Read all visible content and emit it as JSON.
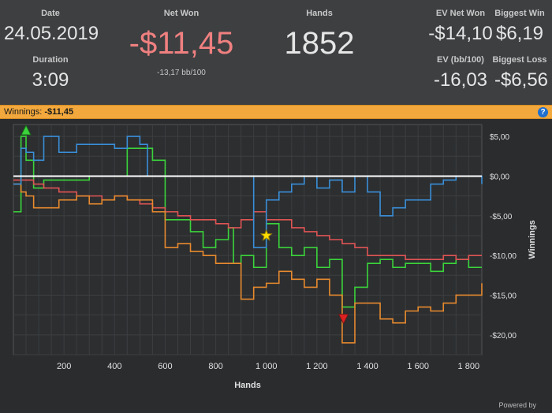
{
  "stats": {
    "date_label": "Date",
    "date_value": "24.05.2019",
    "duration_label": "Duration",
    "duration_value": "3:09",
    "net_won_label": "Net Won",
    "net_won_value": "-$11,45",
    "bb100_value": "-13,17 bb/100",
    "hands_label": "Hands",
    "hands_value": "1852",
    "ev_net_won_label": "EV Net Won",
    "ev_net_won_value": "-$14,10",
    "biggest_win_label": "Biggest Win",
    "biggest_win_value": "$6,19",
    "ev_bb100_label": "EV (bb/100)",
    "ev_bb100_value": "-16,03",
    "biggest_loss_label": "Biggest Loss",
    "biggest_loss_value": "-$6,56"
  },
  "winnings_bar": {
    "label": "Winnings:",
    "value": "-$11,45",
    "help_icon": "?"
  },
  "footer": {
    "text": "Powered by"
  },
  "colors": {
    "negative": "#f08080",
    "bar": "#f2a83c",
    "green": "#3bd43b",
    "red": "#e05454",
    "orange": "#e88a2e",
    "blue": "#3a8fd8",
    "zero_line": "#ffffff"
  },
  "chart_data": {
    "type": "line",
    "xlabel": "Hands",
    "ylabel": "Winnings",
    "xlim": [
      0,
      1852
    ],
    "ylim": [
      -22.5,
      6.5
    ],
    "x_ticks": [
      200,
      400,
      600,
      800,
      1000,
      1200,
      1400,
      1600,
      1800
    ],
    "x_tick_labels": [
      "200",
      "400",
      "600",
      "800",
      "1 000",
      "1 200",
      "1 400",
      "1 600",
      "1 800"
    ],
    "y_ticks": [
      5,
      0,
      -5,
      -10,
      -15,
      -20
    ],
    "y_tick_labels": [
      "$5,00",
      "$0,00",
      "-$5,00",
      "-$10,00",
      "-$15,00",
      "-$20,00"
    ],
    "grid": true,
    "series": [
      {
        "color": "#3bd43b",
        "x": [
          0,
          30,
          50,
          80,
          120,
          180,
          250,
          300,
          350,
          400,
          450,
          500,
          550,
          600,
          650,
          700,
          750,
          800,
          850,
          870,
          900,
          950,
          1000,
          1050,
          1100,
          1150,
          1200,
          1250,
          1300,
          1350,
          1400,
          1450,
          1500,
          1550,
          1600,
          1650,
          1700,
          1750,
          1800,
          1852
        ],
        "y": [
          -4.5,
          5,
          2,
          -1.5,
          -0.5,
          -0.5,
          -0.5,
          0,
          0,
          0,
          3.5,
          3.5,
          2,
          -5.5,
          -5.5,
          -7,
          -9,
          -8,
          -6.5,
          -11,
          -10,
          -11.5,
          -6,
          -9,
          -10,
          -9,
          -11.5,
          -10.5,
          -16.5,
          -14,
          -11,
          -10.5,
          -11.5,
          -11,
          -11,
          -12,
          -11,
          -10.5,
          -11.5,
          -11.5
        ]
      },
      {
        "color": "#e05454",
        "x": [
          0,
          30,
          50,
          80,
          120,
          180,
          250,
          300,
          350,
          400,
          450,
          500,
          550,
          600,
          650,
          700,
          750,
          800,
          850,
          900,
          950,
          1000,
          1050,
          1100,
          1150,
          1200,
          1250,
          1300,
          1350,
          1400,
          1450,
          1500,
          1550,
          1600,
          1650,
          1700,
          1750,
          1800,
          1852
        ],
        "y": [
          -0.5,
          -0.5,
          -0.5,
          -1,
          -1.5,
          -2,
          -2.5,
          -2.5,
          -3,
          -2.5,
          -3,
          -3.5,
          -4,
          -4.5,
          -5,
          -5.5,
          -5.5,
          -6,
          -6.5,
          -5.5,
          -4.5,
          -5.5,
          -5.5,
          -6.5,
          -7,
          -7.5,
          -8,
          -8.5,
          -9,
          -10,
          -10,
          -10,
          -10.5,
          -10.5,
          -10.5,
          -10,
          -10.5,
          -10,
          -10
        ]
      },
      {
        "color": "#e88a2e",
        "x": [
          0,
          30,
          50,
          80,
          120,
          180,
          250,
          300,
          350,
          400,
          450,
          500,
          550,
          600,
          650,
          700,
          750,
          800,
          850,
          900,
          950,
          1000,
          1050,
          1100,
          1150,
          1200,
          1250,
          1300,
          1350,
          1400,
          1450,
          1500,
          1550,
          1600,
          1650,
          1700,
          1750,
          1800,
          1852
        ],
        "y": [
          -1,
          -2,
          -2.5,
          -4,
          -4,
          -3,
          -2.5,
          -3.5,
          -3,
          -2.5,
          -3,
          -3,
          -4.5,
          -9,
          -8.5,
          -9.5,
          -10,
          -11,
          -11,
          -15.5,
          -14,
          -13.5,
          -12,
          -13,
          -14,
          -13,
          -15,
          -21,
          -16,
          -16,
          -18,
          -18.5,
          -17,
          -16.5,
          -17,
          -16,
          -15,
          -15,
          -13.5
        ]
      },
      {
        "color": "#3a8fd8",
        "x": [
          0,
          30,
          50,
          80,
          120,
          180,
          250,
          300,
          350,
          400,
          450,
          500,
          520,
          530,
          600,
          700,
          800,
          900,
          950,
          980,
          1000,
          1050,
          1100,
          1150,
          1200,
          1250,
          1300,
          1350,
          1400,
          1450,
          1500,
          1550,
          1600,
          1650,
          1700,
          1750,
          1800,
          1852
        ],
        "y": [
          -1,
          3.5,
          3,
          2,
          5,
          3,
          4,
          4,
          4,
          3.5,
          5,
          4,
          4,
          0,
          0,
          0,
          0,
          0,
          -9,
          -9,
          -3,
          -2,
          -1,
          0,
          -1.5,
          -0.5,
          -2,
          0,
          -2,
          -5,
          -4,
          -3,
          -3,
          -1,
          -0.5,
          0,
          0,
          -1
        ]
      }
    ],
    "markers": [
      {
        "shape": "triangle-up",
        "color": "#3bd43b",
        "x": 50,
        "y": 5.8
      },
      {
        "shape": "star",
        "color": "#ffdd00",
        "x": 1000,
        "y": -7.5
      },
      {
        "shape": "triangle-down",
        "color": "#e02020",
        "x": 1305,
        "y": -18
      }
    ]
  }
}
